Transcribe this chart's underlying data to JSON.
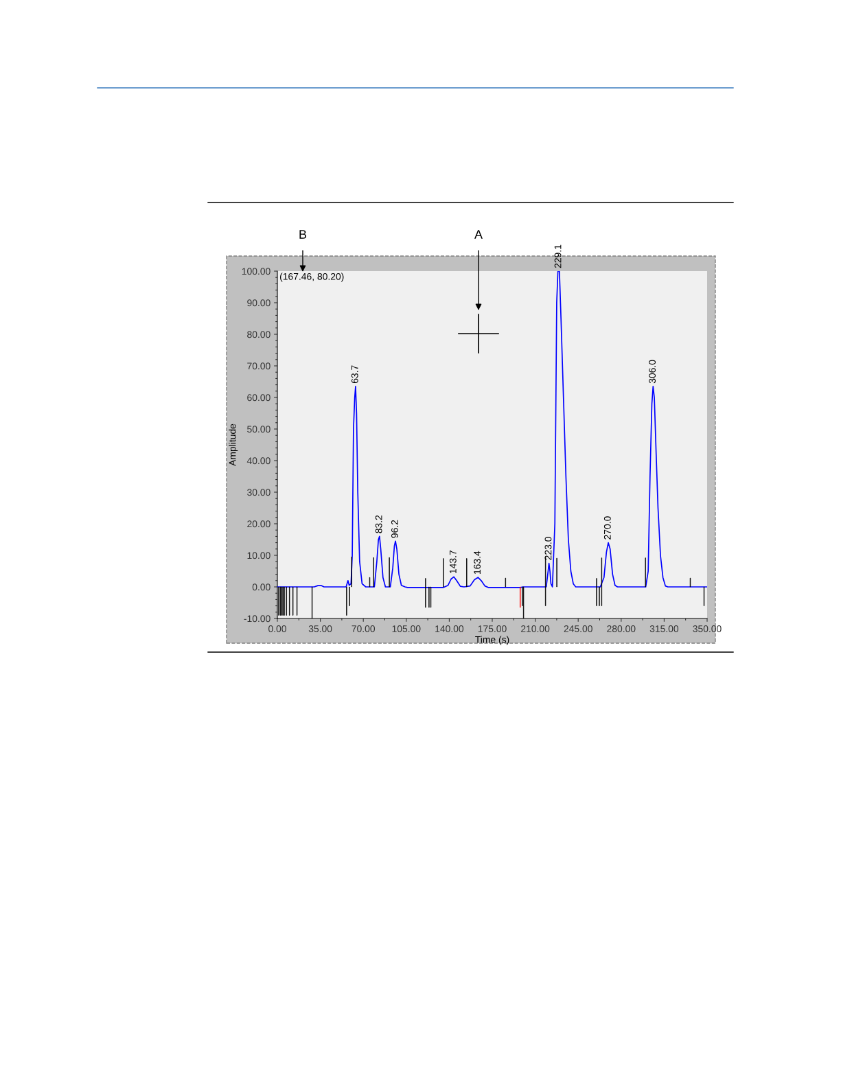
{
  "chart_data": {
    "type": "line",
    "xlabel": "Time (s)",
    "ylabel": "Amplitude",
    "xlim": [
      0,
      350
    ],
    "ylim": [
      -10,
      100
    ],
    "xticks": [
      {
        "value": 0,
        "label": "0.00"
      },
      {
        "value": 35,
        "label": "35.00"
      },
      {
        "value": 70,
        "label": "70.00"
      },
      {
        "value": 105,
        "label": "105.00"
      },
      {
        "value": 140,
        "label": "140.00"
      },
      {
        "value": 175,
        "label": "175.00"
      },
      {
        "value": 210,
        "label": "210.00"
      },
      {
        "value": 245,
        "label": "245.00"
      },
      {
        "value": 280,
        "label": "280.00"
      },
      {
        "value": 315,
        "label": "315.00"
      },
      {
        "value": 350,
        "label": "350.00"
      }
    ],
    "yticks": [
      {
        "value": -10,
        "label": "-10.00"
      },
      {
        "value": 0,
        "label": "0.00"
      },
      {
        "value": 10,
        "label": "10.00"
      },
      {
        "value": 20,
        "label": "20.00"
      },
      {
        "value": 30,
        "label": "30.00"
      },
      {
        "value": 40,
        "label": "40.00"
      },
      {
        "value": 50,
        "label": "50.00"
      },
      {
        "value": 60,
        "label": "60.00"
      },
      {
        "value": 70,
        "label": "70.00"
      },
      {
        "value": 80,
        "label": "80.00"
      },
      {
        "value": 90,
        "label": "90.00"
      },
      {
        "value": 100,
        "label": "100.00"
      }
    ],
    "grid": false,
    "legend": false,
    "series": [
      {
        "type": "bar",
        "colors": [
          "#000000",
          "#000000",
          "#000000",
          "#000000",
          "#000000",
          "#000000",
          "#000000",
          "#000000",
          "#000000",
          "#000000",
          "#000000",
          "#000000",
          "#000000",
          "#000000",
          "#000000",
          "#000000",
          "#000000",
          "#000000",
          "#000000",
          "#000000",
          "#000000",
          "#000000",
          "#ff0000",
          "#000000",
          "#000000",
          "#000000",
          "#000000",
          "#000000",
          "#000000",
          "#000000",
          "#000000",
          "#000000",
          "#000000"
        ],
        "x": [
          1.1,
          2.4,
          3.4,
          4.5,
          5.6,
          7.4,
          9.9,
          12.7,
          16.0,
          28.3,
          56.4,
          58.8,
          60.5,
          75.2,
          78.4,
          91.2,
          120.7,
          123.5,
          125.0,
          135.2,
          154.2,
          185.8,
          197.8,
          199.5,
          200.5,
          218.4,
          227.6,
          260.0,
          262.2,
          264.1,
          299.8,
          336.3,
          347.5
        ],
        "base": [
          0,
          0,
          0,
          0,
          0,
          0,
          0,
          0,
          0,
          0,
          0,
          0,
          0,
          0,
          0,
          0,
          -6.5,
          0,
          0,
          0,
          0,
          0,
          0,
          0,
          0,
          -6,
          0,
          -6,
          0,
          -6,
          0,
          0,
          0
        ],
        "values": [
          -9,
          -9,
          -9,
          -9,
          -9,
          -9,
          -9,
          -9,
          -9,
          -10,
          -9,
          -6,
          9.5,
          3,
          9.3,
          9.3,
          9.2,
          -6.5,
          -6.5,
          9,
          9,
          2.8,
          -6.5,
          -6,
          -10,
          15.4,
          9.1,
          8.7,
          -6,
          15.2,
          9.2,
          2.8,
          -6
        ]
      },
      {
        "color": "#0000ff",
        "x": [
          0,
          5,
          30,
          33,
          36,
          38,
          56,
          57.5,
          58.5,
          60,
          61,
          62,
          63,
          63.7,
          64.5,
          65.5,
          67,
          69,
          72,
          79,
          81,
          82.3,
          83.2,
          84.2,
          86,
          88,
          92,
          94,
          95.3,
          96.2,
          97.3,
          99,
          101,
          104,
          106,
          135,
          139,
          141.5,
          143.7,
          146,
          149,
          152,
          157,
          160.5,
          163.4,
          166,
          169,
          172,
          198,
          200,
          219,
          220.5,
          221.2,
          222,
          222.8,
          224,
          226,
          227.5,
          228.5,
          229.7,
          231,
          233,
          235,
          237,
          239,
          241,
          243,
          263,
          266,
          268,
          269.5,
          271,
          273,
          275,
          277,
          300,
          302,
          303.5,
          305,
          306,
          307,
          308.5,
          310,
          312,
          314,
          316,
          318,
          350
        ],
        "values": [
          0,
          0,
          0,
          0.4,
          0.4,
          0,
          0,
          2,
          0.5,
          1,
          10,
          50,
          60,
          63.5,
          55,
          30,
          8,
          1,
          0,
          0,
          8,
          15,
          16,
          12,
          3,
          0,
          0,
          6,
          13,
          14.5,
          12,
          4,
          0.5,
          0,
          -0.2,
          -0.2,
          0.5,
          2.5,
          3.2,
          2,
          0.2,
          0,
          0.3,
          2.3,
          3,
          2,
          0.3,
          -0.2,
          -0.2,
          0,
          0,
          5,
          7.5,
          5,
          1,
          0,
          20,
          90,
          100,
          100,
          85,
          60,
          35,
          15,
          5,
          1,
          0,
          0,
          3,
          11,
          14,
          12,
          4,
          0.5,
          0,
          0,
          5,
          35,
          58,
          63.5,
          60,
          42,
          25,
          10,
          3,
          0.3,
          0,
          0
        ]
      }
    ],
    "annotations": [
      "(167.46, 80.20)",
      "B",
      "A",
      {
        "text": "63.7",
        "x": 63.7,
        "y": 63.5
      },
      {
        "text": "83.2",
        "x": 83.2,
        "y": 16
      },
      {
        "text": "96.2",
        "x": 96.2,
        "y": 14.5
      },
      {
        "text": "143.7",
        "x": 143.7,
        "y": 3.2
      },
      {
        "text": "163.4",
        "x": 163.4,
        "y": 3
      },
      {
        "text": "223.0",
        "x": 221.2,
        "y": 7.5
      },
      {
        "text": "229.1",
        "x": 229.1,
        "y": 100
      },
      {
        "text": "270.0",
        "x": 269.5,
        "y": 14
      },
      {
        "text": "306.0",
        "x": 306,
        "y": 63.5
      }
    ]
  }
}
